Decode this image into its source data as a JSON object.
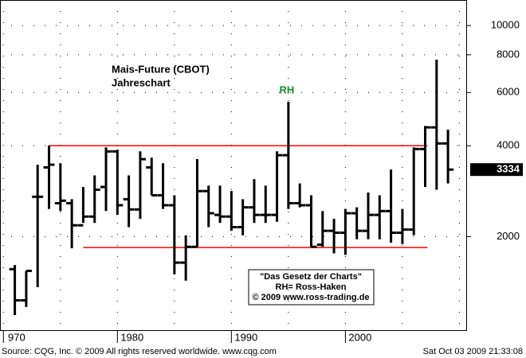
{
  "chart_data": {
    "type": "ohlc",
    "title": "Mais-Future (CBOT)",
    "subtitle": "Jahreschart",
    "x": [
      1971,
      1972,
      1973,
      1974,
      1975,
      1976,
      1977,
      1978,
      1979,
      1980,
      1981,
      1982,
      1983,
      1984,
      1985,
      1986,
      1987,
      1988,
      1989,
      1990,
      1991,
      1992,
      1993,
      1994,
      1995,
      1996,
      1997,
      1998,
      1999,
      2000,
      2001,
      2002,
      2003,
      2004,
      2005,
      2006,
      2007,
      2008,
      2009
    ],
    "open": [
      1560,
      1230,
      2710,
      3390,
      2580,
      2580,
      2180,
      2330,
      2920,
      3830,
      2660,
      2460,
      3390,
      2740,
      2540,
      1640,
      1850,
      2830,
      2360,
      2330,
      2150,
      2500,
      2360,
      2360,
      3720,
      2580,
      2540,
      1880,
      2090,
      2060,
      2390,
      2090,
      2360,
      2430,
      2060,
      2110,
      3900,
      4600,
      4070
    ],
    "high": [
      1610,
      1540,
      3460,
      4000,
      3500,
      2660,
      2920,
      3190,
      3950,
      3880,
      3190,
      3830,
      3650,
      3500,
      2740,
      2020,
      3610,
      2950,
      2950,
      2830,
      2660,
      3100,
      2950,
      3830,
      5590,
      3000,
      2740,
      2430,
      2290,
      2470,
      2500,
      2800,
      2740,
      3334,
      2470,
      3950,
      4650,
      7710,
      4520
    ],
    "low": [
      1100,
      1170,
      1360,
      2470,
      2430,
      1830,
      2220,
      2220,
      2430,
      2360,
      2150,
      2290,
      2740,
      2470,
      1500,
      1430,
      1850,
      2150,
      2220,
      2090,
      2020,
      2220,
      2220,
      2240,
      2470,
      2500,
      1850,
      1850,
      1760,
      1740,
      1960,
      1960,
      1960,
      1910,
      1890,
      2020,
      2920,
      2860,
      3000
    ],
    "close": [
      1230,
      1540,
      2710,
      3460,
      2630,
      2180,
      2330,
      2860,
      3830,
      2540,
      2460,
      3610,
      2740,
      2540,
      1640,
      1850,
      2830,
      2390,
      2330,
      2150,
      2500,
      2360,
      2360,
      3720,
      2580,
      2540,
      1850,
      2090,
      2060,
      2390,
      2090,
      2360,
      2430,
      2060,
      2110,
      3900,
      4600,
      4070,
      3334
    ],
    "color": "#000000",
    "xlim": [
      1969.7,
      2010.6
    ],
    "xticks": [
      {
        "value": 1970,
        "label": "970"
      },
      1980,
      1990,
      2000
    ],
    "x_minor_ticks": [
      1975,
      1985,
      1995,
      2005,
      2010
    ],
    "ylim": [
      980,
      12150
    ],
    "log_scale": true,
    "yticks": [
      2000,
      4000,
      6000,
      8000,
      10000
    ],
    "grid": true,
    "lines": [
      {
        "value": 4000,
        "x": [
          1974,
          2007.2
        ],
        "color": "#ff0000"
      },
      {
        "value": 1840,
        "x": [
          1977,
          2007.2
        ],
        "color": "#ff0000"
      }
    ],
    "annotations": [
      {
        "text": "RH",
        "x": 1995,
        "color": "#1a8c2a"
      }
    ],
    "note": [
      "\"Das Gesetz der Charts\"",
      "RH= Ross-Haken",
      "© 2009 www.ross-trading.de"
    ],
    "source": "Source: CQG, Inc. © 2009 All rights reserved worldwide.  www.cqg.com",
    "timestamp": "Sat Oct 03 2009 21:33:08"
  }
}
